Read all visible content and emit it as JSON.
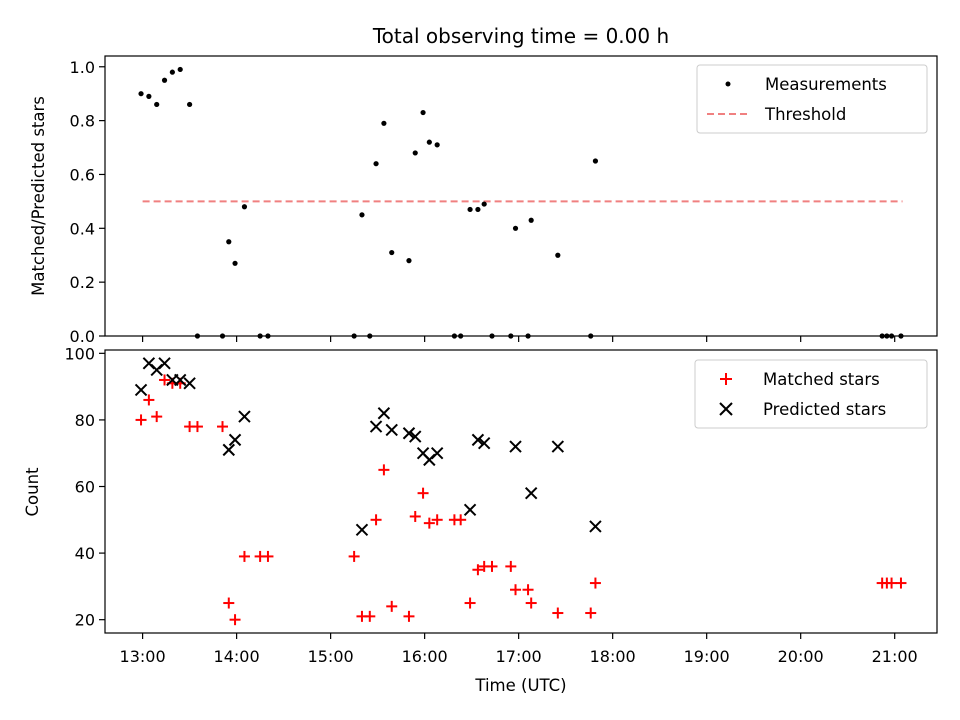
{
  "chart_data": {
    "title": "Total observing time = 0.00 h",
    "xlabel": "Time (UTC)",
    "x_range_hours": [
      12.6,
      21.45
    ],
    "x_ticks": [
      "13:00",
      "14:00",
      "15:00",
      "16:00",
      "17:00",
      "18:00",
      "19:00",
      "20:00",
      "21:00"
    ],
    "panels": [
      {
        "type": "scatter",
        "ylabel": "Matched/Predicted stars",
        "ylim": [
          0.0,
          1.04
        ],
        "y_ticks": [
          "0.0",
          "0.2",
          "0.4",
          "0.6",
          "0.8",
          "1.0"
        ],
        "grid": false,
        "legend_position": "top-right",
        "series": [
          {
            "name": "Measurements",
            "kind": "dots",
            "color": "#000000",
            "points": [
              {
                "time": "12:59",
                "y": 0.9
              },
              {
                "time": "13:04",
                "y": 0.89
              },
              {
                "time": "13:09",
                "y": 0.86
              },
              {
                "time": "13:14",
                "y": 0.95
              },
              {
                "time": "13:19",
                "y": 0.98
              },
              {
                "time": "13:24",
                "y": 0.99
              },
              {
                "time": "13:30",
                "y": 0.86
              },
              {
                "time": "13:35",
                "y": 0.0
              },
              {
                "time": "13:51",
                "y": 0.0
              },
              {
                "time": "13:55",
                "y": 0.35
              },
              {
                "time": "13:59",
                "y": 0.27
              },
              {
                "time": "14:05",
                "y": 0.48
              },
              {
                "time": "14:15",
                "y": 0.0
              },
              {
                "time": "14:20",
                "y": 0.0
              },
              {
                "time": "15:15",
                "y": 0.0
              },
              {
                "time": "15:20",
                "y": 0.45
              },
              {
                "time": "15:25",
                "y": 0.0
              },
              {
                "time": "15:29",
                "y": 0.64
              },
              {
                "time": "15:34",
                "y": 0.79
              },
              {
                "time": "15:39",
                "y": 0.31
              },
              {
                "time": "15:50",
                "y": 0.28
              },
              {
                "time": "15:54",
                "y": 0.68
              },
              {
                "time": "15:59",
                "y": 0.83
              },
              {
                "time": "16:03",
                "y": 0.72
              },
              {
                "time": "16:08",
                "y": 0.71
              },
              {
                "time": "16:19",
                "y": 0.0
              },
              {
                "time": "16:23",
                "y": 0.0
              },
              {
                "time": "16:29",
                "y": 0.47
              },
              {
                "time": "16:34",
                "y": 0.47
              },
              {
                "time": "16:38",
                "y": 0.49
              },
              {
                "time": "16:43",
                "y": 0.0
              },
              {
                "time": "16:55",
                "y": 0.0
              },
              {
                "time": "16:58",
                "y": 0.4
              },
              {
                "time": "17:06",
                "y": 0.0
              },
              {
                "time": "17:08",
                "y": 0.43
              },
              {
                "time": "17:25",
                "y": 0.3
              },
              {
                "time": "17:46",
                "y": 0.0
              },
              {
                "time": "17:49",
                "y": 0.65
              },
              {
                "time": "20:52",
                "y": 0.0
              },
              {
                "time": "20:55",
                "y": 0.0
              },
              {
                "time": "20:58",
                "y": 0.0
              },
              {
                "time": "21:04",
                "y": 0.0
              }
            ]
          },
          {
            "name": "Threshold",
            "kind": "dashed-line",
            "color": "#f08080",
            "y": 0.5,
            "x_from": "13:00",
            "x_to": "21:05"
          }
        ]
      },
      {
        "type": "scatter",
        "ylabel": "Count",
        "ylim": [
          16.0,
          101.0
        ],
        "y_ticks": [
          "20",
          "40",
          "60",
          "80",
          "100"
        ],
        "grid": false,
        "legend_position": "top-right",
        "series": [
          {
            "name": "Matched stars",
            "marker": "plus",
            "color": "#ff0000",
            "points": [
              {
                "time": "12:59",
                "y": 80
              },
              {
                "time": "13:04",
                "y": 86
              },
              {
                "time": "13:09",
                "y": 81
              },
              {
                "time": "13:14",
                "y": 92
              },
              {
                "time": "13:19",
                "y": 91
              },
              {
                "time": "13:24",
                "y": 91
              },
              {
                "time": "13:30",
                "y": 78
              },
              {
                "time": "13:35",
                "y": 78
              },
              {
                "time": "13:51",
                "y": 78
              },
              {
                "time": "13:55",
                "y": 25
              },
              {
                "time": "13:59",
                "y": 20
              },
              {
                "time": "14:05",
                "y": 39
              },
              {
                "time": "14:15",
                "y": 39
              },
              {
                "time": "14:20",
                "y": 39
              },
              {
                "time": "15:15",
                "y": 39
              },
              {
                "time": "15:20",
                "y": 21
              },
              {
                "time": "15:25",
                "y": 21
              },
              {
                "time": "15:29",
                "y": 50
              },
              {
                "time": "15:34",
                "y": 65
              },
              {
                "time": "15:39",
                "y": 24
              },
              {
                "time": "15:50",
                "y": 21
              },
              {
                "time": "15:54",
                "y": 51
              },
              {
                "time": "15:59",
                "y": 58
              },
              {
                "time": "16:03",
                "y": 49
              },
              {
                "time": "16:08",
                "y": 50
              },
              {
                "time": "16:19",
                "y": 50
              },
              {
                "time": "16:23",
                "y": 50
              },
              {
                "time": "16:29",
                "y": 25
              },
              {
                "time": "16:34",
                "y": 35
              },
              {
                "time": "16:38",
                "y": 36
              },
              {
                "time": "16:43",
                "y": 36
              },
              {
                "time": "16:55",
                "y": 36
              },
              {
                "time": "16:58",
                "y": 29
              },
              {
                "time": "17:06",
                "y": 29
              },
              {
                "time": "17:08",
                "y": 25
              },
              {
                "time": "17:25",
                "y": 22
              },
              {
                "time": "17:46",
                "y": 22
              },
              {
                "time": "17:49",
                "y": 31
              },
              {
                "time": "20:52",
                "y": 31
              },
              {
                "time": "20:55",
                "y": 31
              },
              {
                "time": "20:58",
                "y": 31
              },
              {
                "time": "21:04",
                "y": 31
              }
            ]
          },
          {
            "name": "Predicted stars",
            "marker": "x",
            "color": "#000000",
            "points": [
              {
                "time": "12:59",
                "y": 89
              },
              {
                "time": "13:04",
                "y": 97
              },
              {
                "time": "13:09",
                "y": 95
              },
              {
                "time": "13:14",
                "y": 97
              },
              {
                "time": "13:19",
                "y": 92
              },
              {
                "time": "13:24",
                "y": 92
              },
              {
                "time": "13:30",
                "y": 91
              },
              {
                "time": "13:55",
                "y": 71
              },
              {
                "time": "13:59",
                "y": 74
              },
              {
                "time": "14:05",
                "y": 81
              },
              {
                "time": "15:20",
                "y": 47
              },
              {
                "time": "15:29",
                "y": 78
              },
              {
                "time": "15:34",
                "y": 82
              },
              {
                "time": "15:39",
                "y": 77
              },
              {
                "time": "15:50",
                "y": 76
              },
              {
                "time": "15:54",
                "y": 75
              },
              {
                "time": "15:59",
                "y": 70
              },
              {
                "time": "16:03",
                "y": 68
              },
              {
                "time": "16:08",
                "y": 70
              },
              {
                "time": "16:29",
                "y": 53
              },
              {
                "time": "16:34",
                "y": 74
              },
              {
                "time": "16:38",
                "y": 73
              },
              {
                "time": "16:58",
                "y": 72
              },
              {
                "time": "17:08",
                "y": 58
              },
              {
                "time": "17:25",
                "y": 72
              },
              {
                "time": "17:49",
                "y": 48
              }
            ]
          }
        ]
      }
    ]
  }
}
